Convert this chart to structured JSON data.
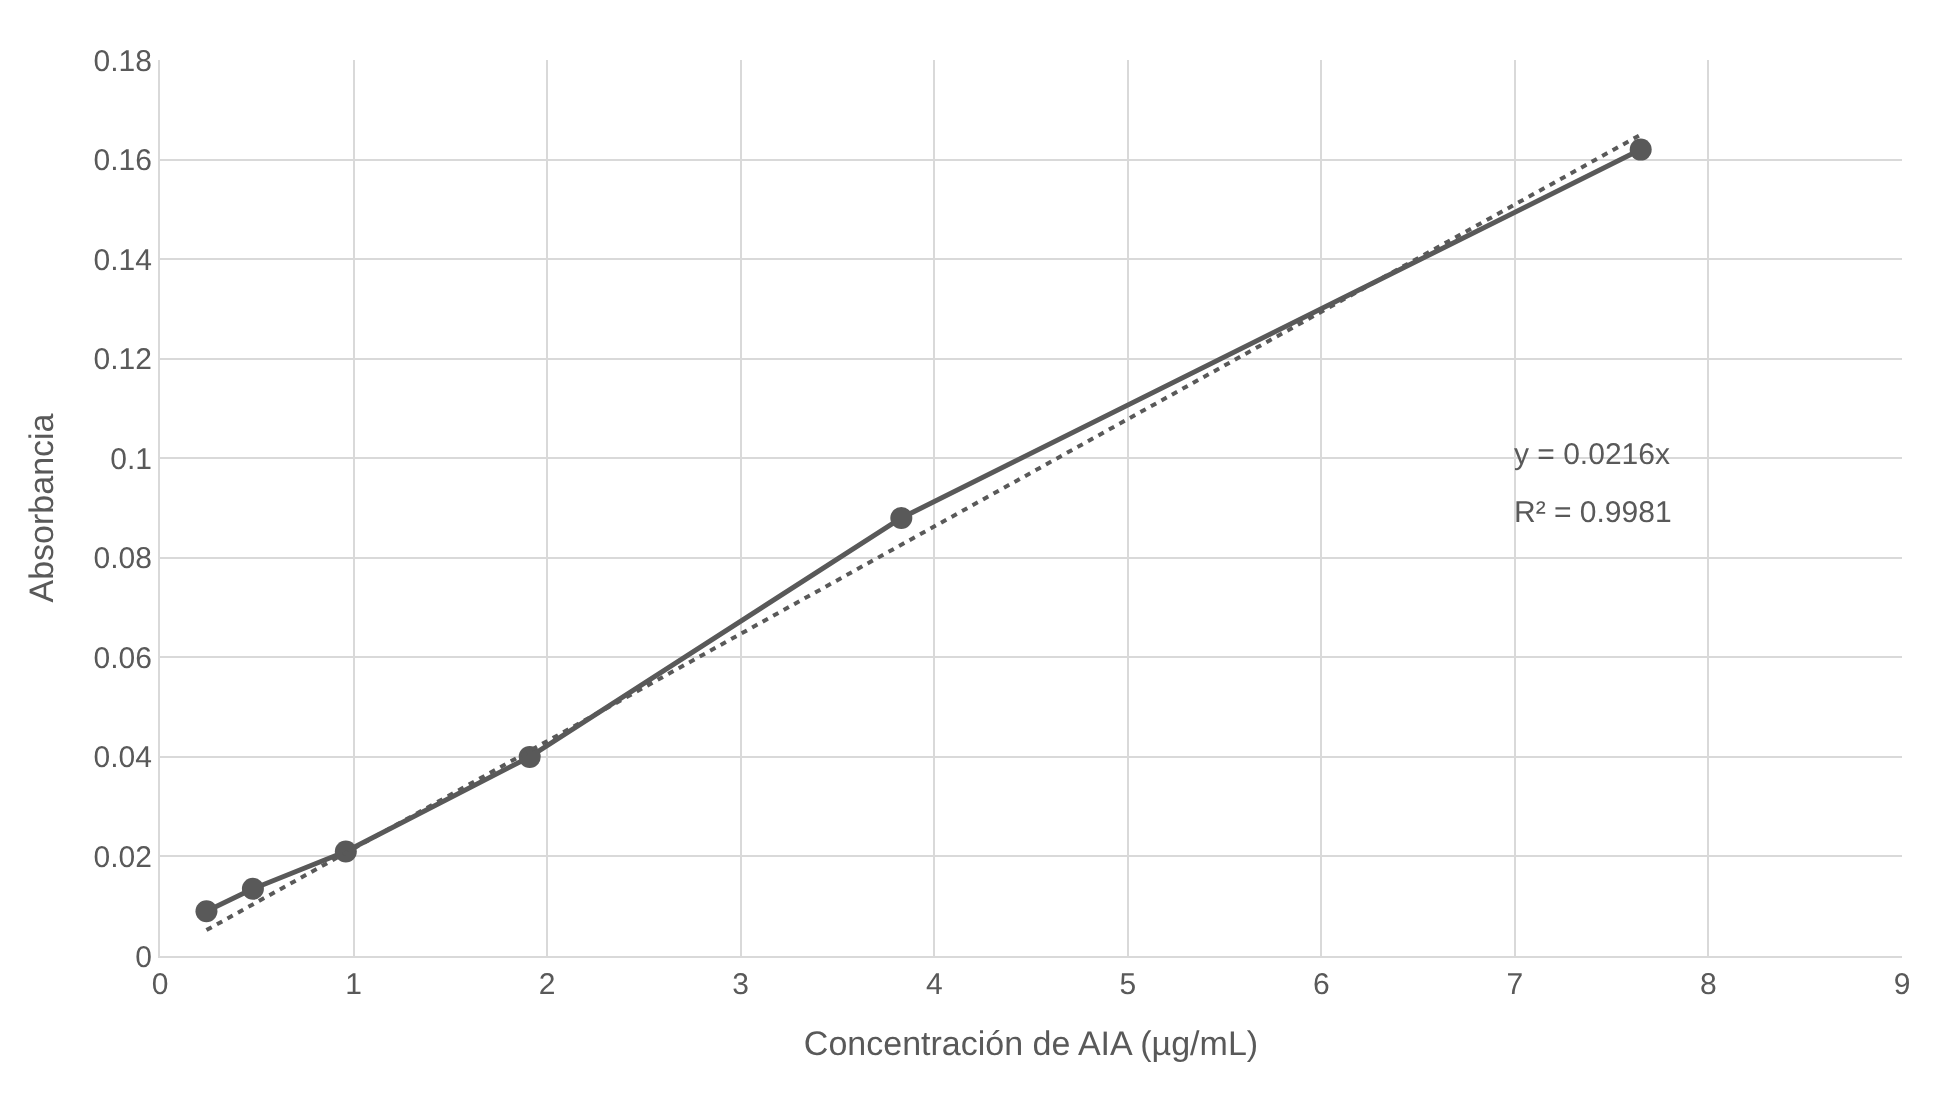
{
  "chart_data": {
    "type": "line",
    "xlabel": "Concentración de AIA (µg/mL)",
    "ylabel": "Absorbancia",
    "series": [
      {
        "color": "#595959",
        "marker": "circle",
        "line_style": "solid",
        "x": [
          0.24,
          0.48,
          0.96,
          1.91,
          3.83,
          7.65
        ],
        "values": [
          0.009,
          0.0135,
          0.021,
          0.04,
          0.088,
          0.162
        ]
      },
      {
        "color": "#595959",
        "marker": "none",
        "line_style": "dotted",
        "x": [
          0.24,
          7.65
        ],
        "values": [
          0.0052,
          0.165
        ]
      }
    ],
    "annotations": [
      "y = 0.0216x",
      "R² = 0.9981"
    ],
    "xlim": [
      0,
      9
    ],
    "xticks": [
      0,
      1,
      2,
      3,
      4,
      5,
      6,
      7,
      8,
      9
    ],
    "ylim": [
      0,
      0.18
    ],
    "yticks": [
      0,
      0.02,
      0.04,
      0.06,
      0.08,
      0.1,
      0.12,
      0.14,
      0.16,
      0.18
    ],
    "grid": true
  }
}
